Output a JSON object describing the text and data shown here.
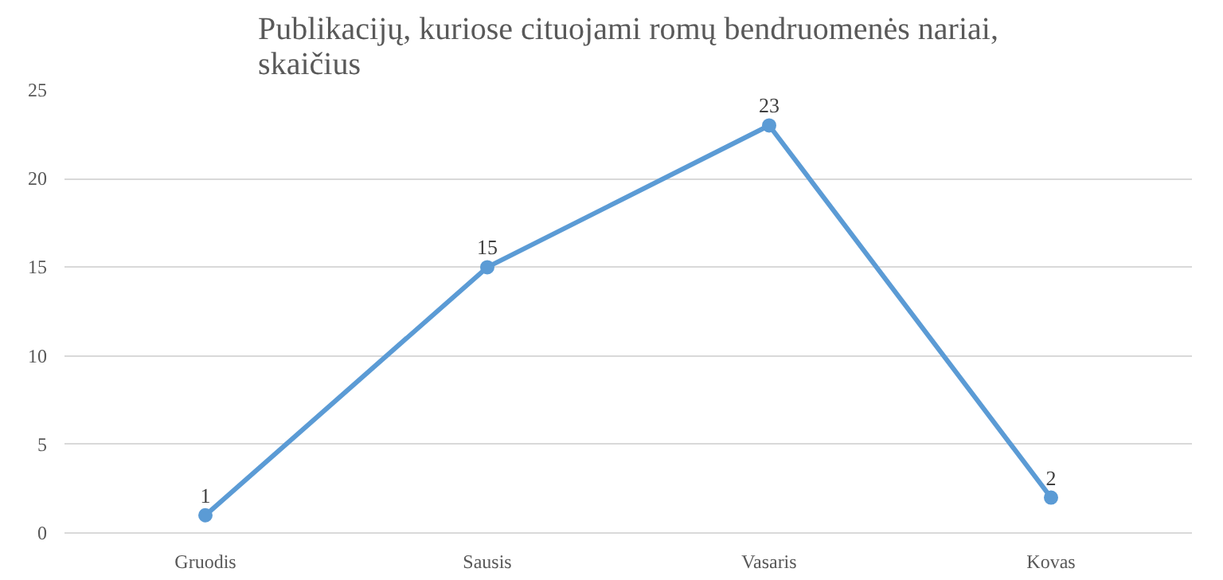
{
  "chart_data": {
    "type": "line",
    "title": "Publikacijų, kuriose cituojami romų bendruomenės nariai,\nskaičius",
    "categories": [
      "Gruodis",
      "Sausis",
      "Vasaris",
      "Kovas"
    ],
    "series": [
      {
        "color": "#5b9bd5",
        "values": [
          1,
          15,
          23,
          2
        ]
      }
    ],
    "ylim": [
      0,
      25
    ],
    "yticks": [
      0,
      5,
      10,
      15,
      20,
      25
    ],
    "grid": "y",
    "marker": "circle",
    "line_style": "solid",
    "data_labels": true
  }
}
